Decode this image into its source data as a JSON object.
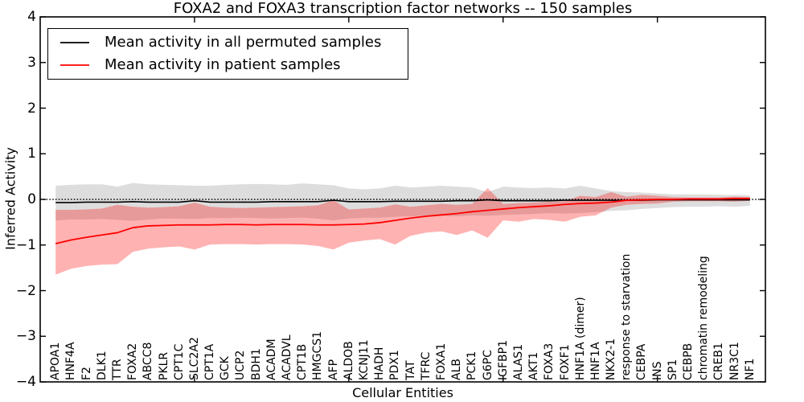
{
  "title": "FOXA2 and FOXA3 transcription factor networks -- 150 samples",
  "legend": {
    "items": [
      {
        "label": "Mean activity in all permuted samples",
        "color": "#000000"
      },
      {
        "label": "Mean activity in patient samples",
        "color": "#ff0000"
      }
    ]
  },
  "axes": {
    "ylabel": "Inferred Activity",
    "xlabel": "Cellular Entities",
    "y_tick_labels": [
      "4",
      "3",
      "2",
      "1",
      "0",
      "−1",
      "−2",
      "−3",
      "−4"
    ],
    "y_tick_values": [
      4,
      3,
      2,
      1,
      0,
      -1,
      -2,
      -3,
      -4
    ]
  },
  "chart_data": {
    "type": "line",
    "title": "FOXA2 and FOXA3 transcription factor networks -- 150 samples",
    "xlabel": "Cellular Entities",
    "ylabel": "Inferred Activity",
    "ylim": [
      -4,
      4
    ],
    "xlim": [
      0,
      47
    ],
    "x_major_tick_positions": [
      10,
      20,
      30,
      40
    ],
    "grid": false,
    "legend_position": "upper left",
    "reference_line": {
      "y": 0,
      "style": "dotted",
      "color": "#000000"
    },
    "categories": [
      "APOA1",
      "HNF4A",
      "F2",
      "DLK1",
      "TTR",
      "FOXA2",
      "ABCC8",
      "PKLR",
      "CPT1C",
      "SLC2A2",
      "CPT1A",
      "GCK",
      "UCP2",
      "BDH1",
      "ACADM",
      "ACADVL",
      "CPT1B",
      "HMGCS1",
      "AFP",
      "ALDOB",
      "KCNJ11",
      "HADH",
      "PDX1",
      "TAT",
      "TFRC",
      "FOXA1",
      "ALB",
      "PCK1",
      "G6PC",
      "IGFBP1",
      "ALAS1",
      "AKT1",
      "FOXA3",
      "FOXF1",
      "HNF1A (dimer)",
      "HNF1A",
      "NKX2-1",
      "response to starvation",
      "CEBPA",
      "INS",
      "SP1",
      "CEBPB",
      "chromatin remodeling",
      "CREB1",
      "NR3C1",
      "NF1"
    ],
    "series": [
      {
        "name": "Mean activity in all permuted samples",
        "color": "#000000",
        "width": 1.6,
        "values": [
          -0.07,
          -0.07,
          -0.06,
          -0.06,
          -0.06,
          -0.05,
          -0.06,
          -0.06,
          -0.06,
          -0.03,
          -0.06,
          -0.06,
          -0.06,
          -0.06,
          -0.05,
          -0.05,
          -0.05,
          -0.05,
          -0.02,
          -0.05,
          -0.05,
          -0.05,
          -0.04,
          -0.04,
          -0.04,
          -0.04,
          -0.03,
          -0.03,
          -0.01,
          -0.03,
          -0.03,
          -0.03,
          -0.03,
          -0.02,
          -0.02,
          -0.02,
          -0.02,
          -0.02,
          -0.02,
          -0.01,
          -0.01,
          -0.01,
          -0.01,
          -0.01,
          -0.01,
          -0.01
        ]
      },
      {
        "name": "Mean activity in patient samples",
        "color": "#ff0000",
        "width": 1.8,
        "values": [
          -0.97,
          -0.89,
          -0.83,
          -0.78,
          -0.73,
          -0.62,
          -0.58,
          -0.57,
          -0.56,
          -0.56,
          -0.56,
          -0.55,
          -0.55,
          -0.56,
          -0.55,
          -0.55,
          -0.55,
          -0.56,
          -0.56,
          -0.55,
          -0.54,
          -0.51,
          -0.46,
          -0.41,
          -0.37,
          -0.34,
          -0.31,
          -0.27,
          -0.24,
          -0.21,
          -0.18,
          -0.16,
          -0.14,
          -0.11,
          -0.09,
          -0.08,
          -0.06,
          -0.02,
          -0.01,
          0,
          0,
          0.01,
          0.01,
          0.01,
          0.02,
          0.02
        ]
      }
    ],
    "bands": [
      {
        "name": "permuted samples spread",
        "color": "#aaaaaa",
        "opacity": 0.4,
        "upper": [
          0.3,
          0.32,
          0.33,
          0.33,
          0.28,
          0.36,
          0.33,
          0.32,
          0.31,
          0.3,
          0.3,
          0.32,
          0.33,
          0.34,
          0.33,
          0.32,
          0.35,
          0.33,
          0.31,
          0.24,
          0.22,
          0.24,
          0.3,
          0.26,
          0.28,
          0.3,
          0.28,
          0.26,
          0.16,
          0.28,
          0.26,
          0.25,
          0.26,
          0.24,
          0.3,
          0.24,
          0.18,
          0.16,
          0.15,
          0.13,
          0.11,
          0.11,
          0.11,
          0.1,
          0.1,
          0.09
        ],
        "lower": [
          -0.46,
          -0.44,
          -0.44,
          -0.43,
          -0.45,
          -0.47,
          -0.44,
          -0.42,
          -0.42,
          -0.43,
          -0.41,
          -0.41,
          -0.4,
          -0.41,
          -0.42,
          -0.41,
          -0.4,
          -0.42,
          -0.46,
          -0.42,
          -0.4,
          -0.4,
          -0.38,
          -0.37,
          -0.36,
          -0.36,
          -0.37,
          -0.35,
          -0.36,
          -0.34,
          -0.33,
          -0.32,
          -0.3,
          -0.31,
          -0.3,
          -0.28,
          -0.25,
          -0.24,
          -0.21,
          -0.19,
          -0.17,
          -0.16,
          -0.16,
          -0.15,
          -0.16,
          -0.14
        ]
      },
      {
        "name": "patient samples spread",
        "color": "#ff0000",
        "opacity": 0.3,
        "upper": [
          -0.23,
          -0.23,
          -0.22,
          -0.2,
          -0.12,
          -0.16,
          -0.18,
          -0.17,
          -0.15,
          -0.07,
          -0.16,
          -0.18,
          -0.19,
          -0.18,
          -0.17,
          -0.16,
          -0.15,
          -0.13,
          -0.02,
          -0.22,
          -0.2,
          -0.18,
          -0.11,
          -0.16,
          -0.13,
          -0.1,
          -0.12,
          -0.1,
          0.25,
          -0.1,
          -0.08,
          -0.07,
          -0.05,
          -0.04,
          0.08,
          0.05,
          0.16,
          0.06,
          0.1,
          0.08,
          0.05,
          0.04,
          0.04,
          0.04,
          0.06,
          0.05
        ],
        "lower": [
          -1.65,
          -1.52,
          -1.46,
          -1.43,
          -1.42,
          -1.15,
          -1.08,
          -1.05,
          -1.03,
          -1.1,
          -0.99,
          -0.98,
          -0.98,
          -0.99,
          -0.98,
          -0.98,
          -0.99,
          -1.02,
          -1.1,
          -0.95,
          -0.9,
          -0.87,
          -0.99,
          -0.8,
          -0.73,
          -0.7,
          -0.78,
          -0.68,
          -0.84,
          -0.46,
          -0.49,
          -0.43,
          -0.45,
          -0.49,
          -0.38,
          -0.35,
          -0.18,
          -0.12,
          -0.1,
          -0.09,
          -0.05,
          -0.04,
          -0.04,
          -0.04,
          -0.05,
          -0.03
        ]
      }
    ]
  }
}
